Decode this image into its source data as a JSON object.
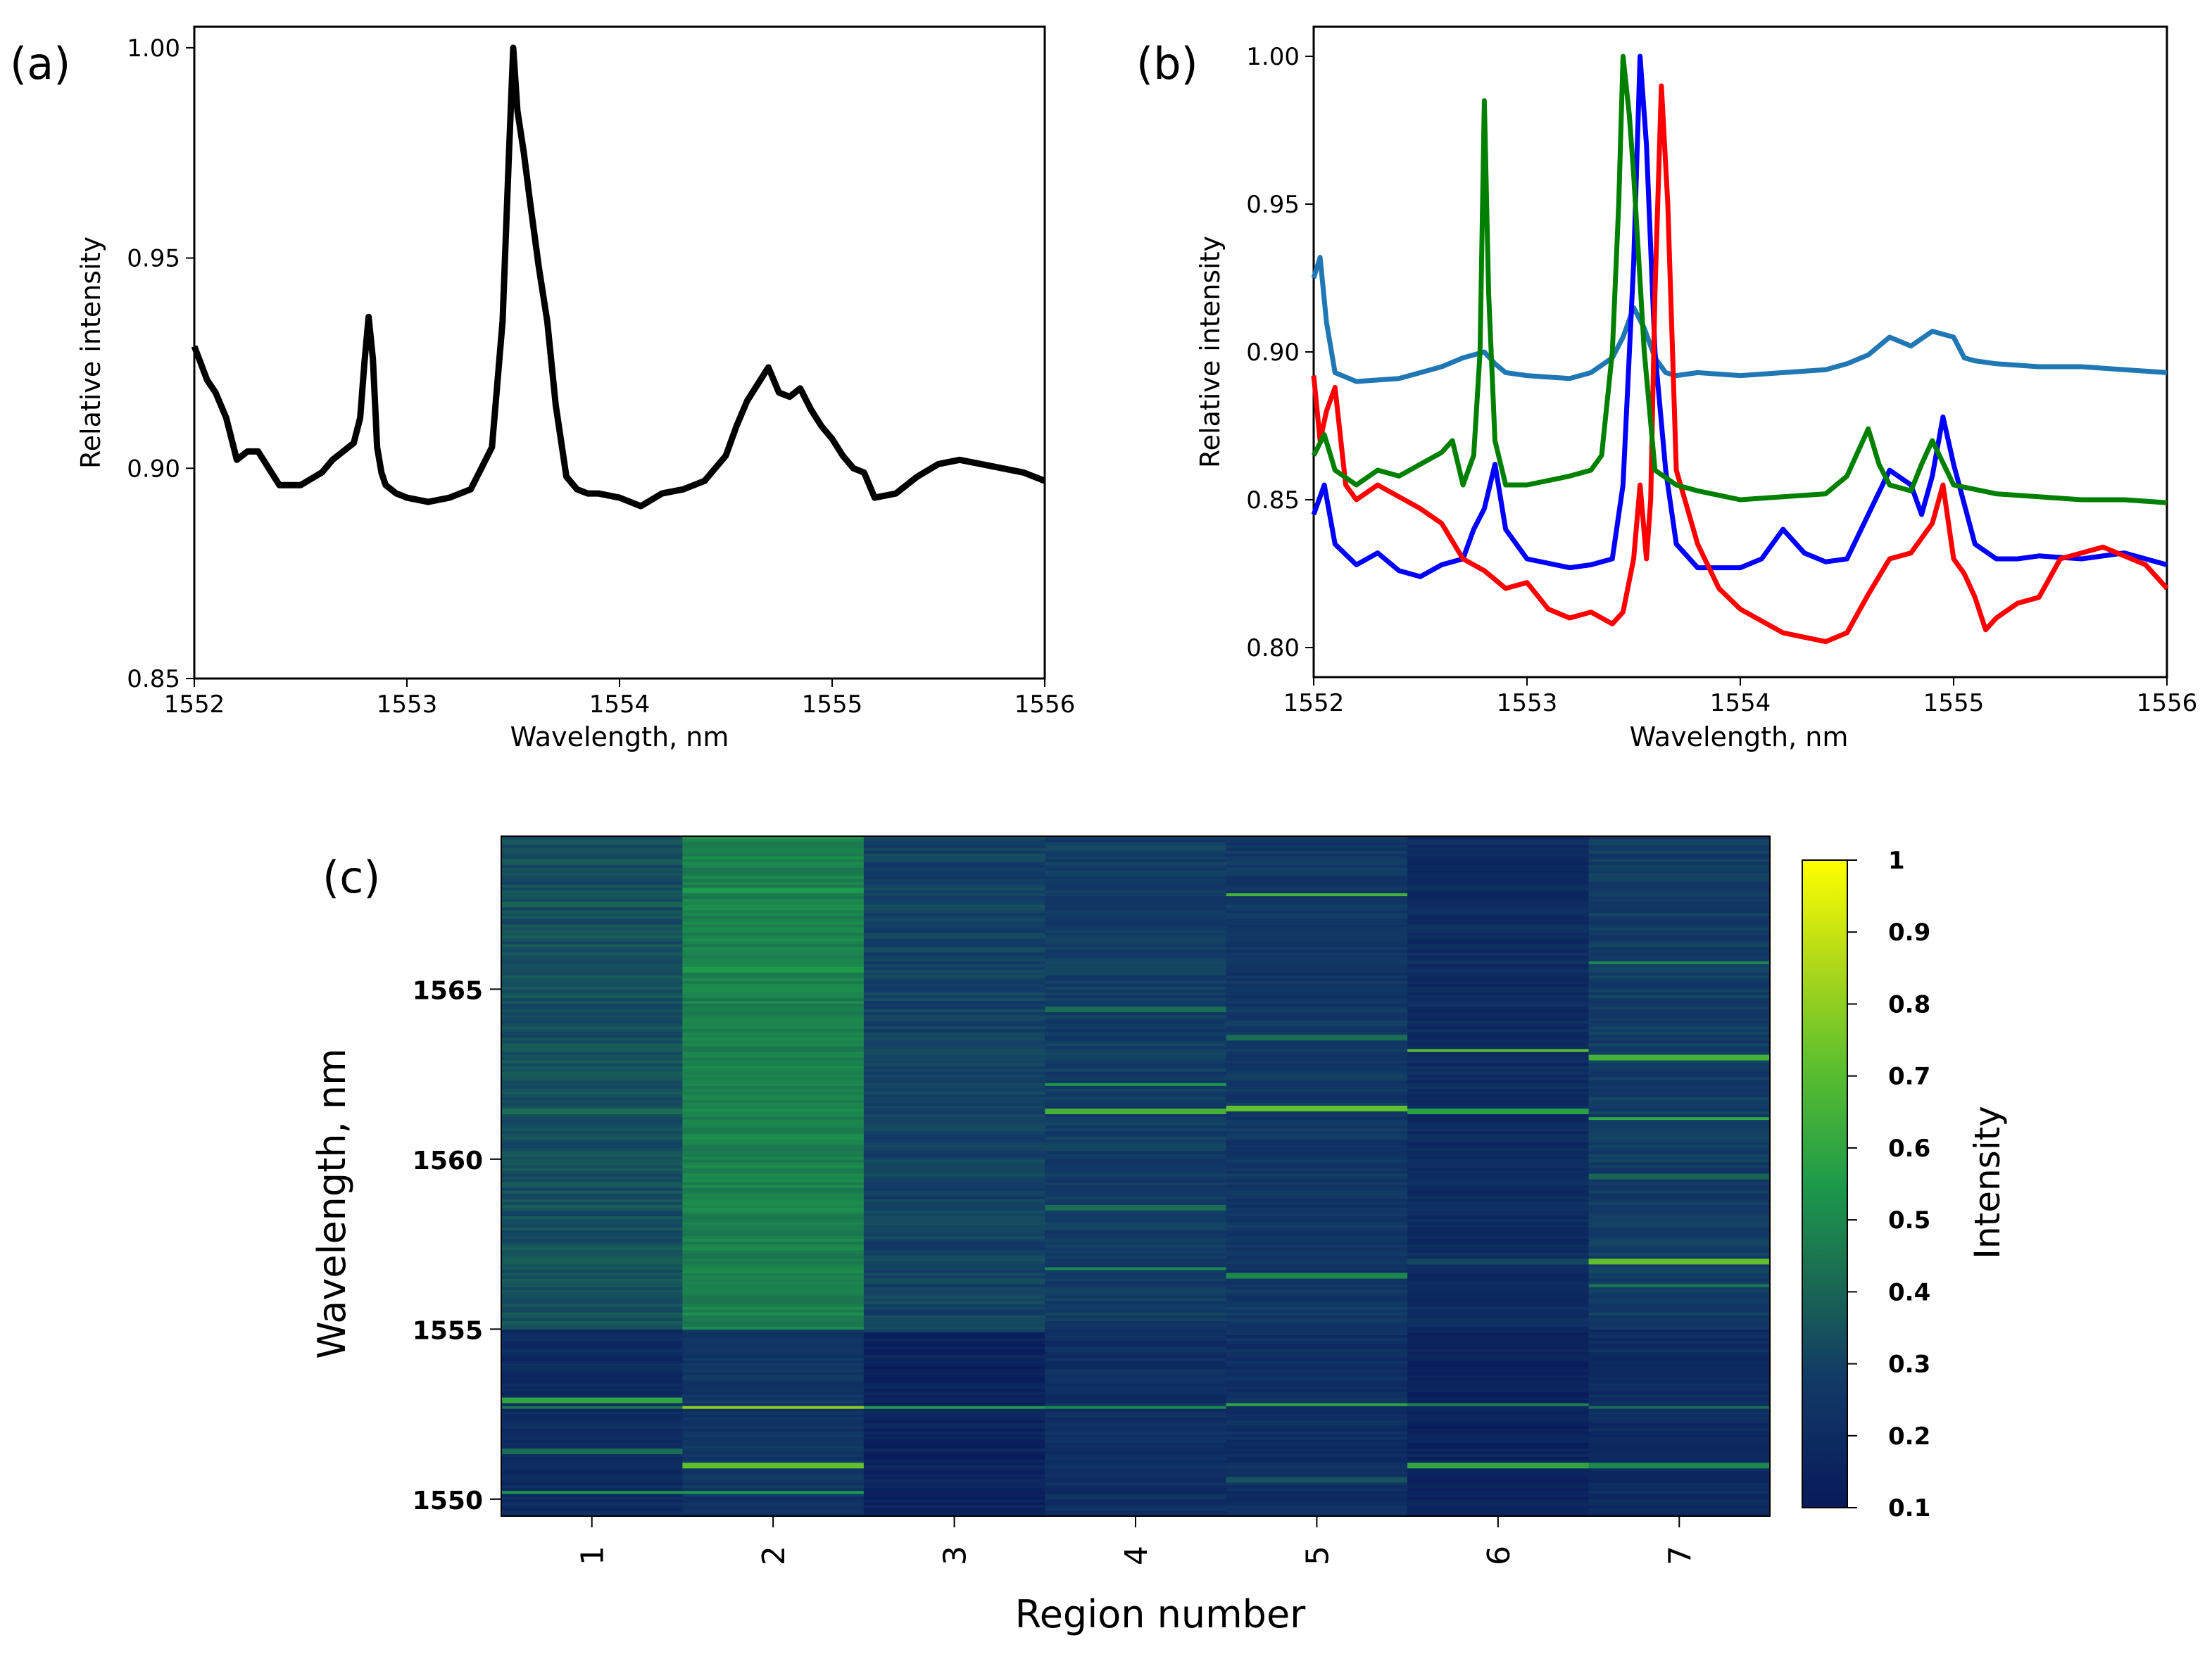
{
  "panels": {
    "a": {
      "label": "(a)"
    },
    "b": {
      "label": "(b)"
    },
    "c": {
      "label": "(c)"
    }
  },
  "chart_data": [
    {
      "id": "a",
      "type": "line",
      "title": "",
      "xlabel": "Wavelength, nm",
      "ylabel": "Relative intensity",
      "xlim": [
        1552,
        1556
      ],
      "ylim": [
        0.85,
        1.005
      ],
      "xticks": [
        "1552",
        "1553",
        "1554",
        "1555",
        "1556"
      ],
      "yticks": [
        "0.85",
        "0.90",
        "0.95",
        "1.00"
      ],
      "grid": false,
      "series": [
        {
          "color": "#000000",
          "x": [
            1552.0,
            1552.03,
            1552.06,
            1552.1,
            1552.15,
            1552.2,
            1552.25,
            1552.3,
            1552.4,
            1552.5,
            1552.6,
            1552.65,
            1552.7,
            1552.75,
            1552.78,
            1552.8,
            1552.82,
            1552.84,
            1552.86,
            1552.88,
            1552.9,
            1552.95,
            1553.0,
            1553.1,
            1553.2,
            1553.3,
            1553.35,
            1553.4,
            1553.45,
            1553.48,
            1553.5,
            1553.52,
            1553.55,
            1553.58,
            1553.62,
            1553.66,
            1553.7,
            1553.75,
            1553.8,
            1553.85,
            1553.9,
            1554.0,
            1554.1,
            1554.2,
            1554.3,
            1554.4,
            1554.5,
            1554.55,
            1554.6,
            1554.65,
            1554.7,
            1554.75,
            1554.8,
            1554.85,
            1554.9,
            1554.95,
            1555.0,
            1555.05,
            1555.1,
            1555.15,
            1555.2,
            1555.3,
            1555.4,
            1555.5,
            1555.6,
            1555.7,
            1555.8,
            1555.9,
            1556.0
          ],
          "y": [
            0.929,
            0.925,
            0.921,
            0.918,
            0.912,
            0.902,
            0.904,
            0.904,
            0.896,
            0.896,
            0.899,
            0.902,
            0.904,
            0.906,
            0.912,
            0.925,
            0.936,
            0.926,
            0.905,
            0.899,
            0.896,
            0.894,
            0.893,
            0.892,
            0.893,
            0.895,
            0.9,
            0.905,
            0.935,
            0.975,
            1.0,
            0.985,
            0.975,
            0.963,
            0.948,
            0.935,
            0.915,
            0.898,
            0.895,
            0.894,
            0.894,
            0.893,
            0.891,
            0.894,
            0.895,
            0.897,
            0.903,
            0.91,
            0.916,
            0.92,
            0.924,
            0.918,
            0.917,
            0.919,
            0.914,
            0.91,
            0.907,
            0.903,
            0.9,
            0.899,
            0.893,
            0.894,
            0.898,
            0.901,
            0.902,
            0.901,
            0.9,
            0.899,
            0.897
          ]
        }
      ]
    },
    {
      "id": "b",
      "type": "line",
      "title": "",
      "xlabel": "Wavelength, nm",
      "ylabel": "Relative intensity",
      "xlim": [
        1552,
        1556
      ],
      "ylim": [
        0.79,
        1.01
      ],
      "xticks": [
        "1552",
        "1553",
        "1554",
        "1555",
        "1556"
      ],
      "yticks": [
        "0.80",
        "0.85",
        "0.90",
        "0.95",
        "1.00"
      ],
      "grid": false,
      "series": [
        {
          "color": "#1f77b4",
          "x": [
            1552.0,
            1552.03,
            1552.06,
            1552.1,
            1552.2,
            1552.4,
            1552.6,
            1552.7,
            1552.8,
            1552.85,
            1552.9,
            1553.0,
            1553.2,
            1553.3,
            1553.4,
            1553.45,
            1553.5,
            1553.55,
            1553.6,
            1553.65,
            1553.7,
            1553.8,
            1554.0,
            1554.2,
            1554.4,
            1554.5,
            1554.6,
            1554.7,
            1554.8,
            1554.9,
            1555.0,
            1555.05,
            1555.1,
            1555.2,
            1555.4,
            1555.6,
            1555.8,
            1556.0
          ],
          "y": [
            0.925,
            0.932,
            0.91,
            0.893,
            0.89,
            0.891,
            0.895,
            0.898,
            0.9,
            0.896,
            0.893,
            0.892,
            0.891,
            0.893,
            0.898,
            0.905,
            0.915,
            0.908,
            0.898,
            0.893,
            0.892,
            0.893,
            0.892,
            0.893,
            0.894,
            0.896,
            0.899,
            0.905,
            0.902,
            0.907,
            0.905,
            0.898,
            0.897,
            0.896,
            0.895,
            0.895,
            0.894,
            0.893
          ]
        },
        {
          "color": "#0000ff",
          "x": [
            1552.0,
            1552.05,
            1552.1,
            1552.2,
            1552.3,
            1552.4,
            1552.5,
            1552.6,
            1552.7,
            1552.75,
            1552.8,
            1552.85,
            1552.9,
            1553.0,
            1553.2,
            1553.3,
            1553.4,
            1553.45,
            1553.5,
            1553.53,
            1553.56,
            1553.6,
            1553.65,
            1553.7,
            1553.8,
            1554.0,
            1554.1,
            1554.2,
            1554.3,
            1554.4,
            1554.5,
            1554.6,
            1554.7,
            1554.8,
            1554.85,
            1554.9,
            1554.95,
            1555.0,
            1555.1,
            1555.2,
            1555.3,
            1555.4,
            1555.6,
            1555.8,
            1556.0
          ],
          "y": [
            0.845,
            0.855,
            0.835,
            0.828,
            0.832,
            0.826,
            0.824,
            0.828,
            0.83,
            0.84,
            0.847,
            0.862,
            0.84,
            0.83,
            0.827,
            0.828,
            0.83,
            0.855,
            0.93,
            1.0,
            0.97,
            0.9,
            0.86,
            0.835,
            0.827,
            0.827,
            0.83,
            0.84,
            0.832,
            0.829,
            0.83,
            0.845,
            0.86,
            0.855,
            0.845,
            0.858,
            0.878,
            0.862,
            0.835,
            0.83,
            0.83,
            0.831,
            0.83,
            0.832,
            0.828
          ]
        },
        {
          "color": "#ff0000",
          "x": [
            1552.0,
            1552.03,
            1552.06,
            1552.1,
            1552.15,
            1552.2,
            1552.3,
            1552.5,
            1552.6,
            1552.7,
            1552.8,
            1552.9,
            1553.0,
            1553.1,
            1553.2,
            1553.3,
            1553.4,
            1553.45,
            1553.5,
            1553.53,
            1553.56,
            1553.58,
            1553.6,
            1553.63,
            1553.66,
            1553.7,
            1553.8,
            1553.9,
            1554.0,
            1554.2,
            1554.4,
            1554.5,
            1554.6,
            1554.7,
            1554.8,
            1554.9,
            1554.95,
            1555.0,
            1555.05,
            1555.1,
            1555.15,
            1555.2,
            1555.3,
            1555.4,
            1555.5,
            1555.6,
            1555.7,
            1555.8,
            1555.9,
            1556.0
          ],
          "y": [
            0.892,
            0.87,
            0.88,
            0.888,
            0.855,
            0.85,
            0.855,
            0.847,
            0.842,
            0.83,
            0.826,
            0.82,
            0.822,
            0.813,
            0.81,
            0.812,
            0.808,
            0.812,
            0.83,
            0.855,
            0.83,
            0.85,
            0.92,
            0.99,
            0.95,
            0.86,
            0.835,
            0.82,
            0.813,
            0.805,
            0.802,
            0.805,
            0.818,
            0.83,
            0.832,
            0.842,
            0.855,
            0.83,
            0.825,
            0.817,
            0.806,
            0.81,
            0.815,
            0.817,
            0.83,
            0.832,
            0.834,
            0.831,
            0.828,
            0.82
          ]
        },
        {
          "color": "#008000",
          "x": [
            1552.0,
            1552.05,
            1552.1,
            1552.2,
            1552.3,
            1552.4,
            1552.5,
            1552.6,
            1552.65,
            1552.7,
            1552.75,
            1552.78,
            1552.8,
            1552.82,
            1552.85,
            1552.9,
            1553.0,
            1553.2,
            1553.3,
            1553.35,
            1553.4,
            1553.43,
            1553.45,
            1553.48,
            1553.5,
            1553.55,
            1553.6,
            1553.7,
            1553.8,
            1554.0,
            1554.2,
            1554.4,
            1554.5,
            1554.55,
            1554.6,
            1554.65,
            1554.7,
            1554.8,
            1554.85,
            1554.9,
            1555.0,
            1555.2,
            1555.4,
            1555.6,
            1555.8,
            1556.0
          ],
          "y": [
            0.865,
            0.872,
            0.86,
            0.855,
            0.86,
            0.858,
            0.862,
            0.866,
            0.87,
            0.855,
            0.865,
            0.9,
            0.985,
            0.92,
            0.87,
            0.855,
            0.855,
            0.858,
            0.86,
            0.865,
            0.9,
            0.95,
            1.0,
            0.98,
            0.96,
            0.9,
            0.86,
            0.855,
            0.853,
            0.85,
            0.851,
            0.852,
            0.858,
            0.866,
            0.874,
            0.862,
            0.855,
            0.853,
            0.862,
            0.87,
            0.855,
            0.852,
            0.851,
            0.85,
            0.85,
            0.849
          ]
        }
      ]
    },
    {
      "id": "c",
      "type": "heatmap",
      "title": "",
      "xlabel": "Region number",
      "ylabel": "Wavelength, nm",
      "colorbar_label": "Intensity",
      "colormap": "dark-blue-to-green-to-yellow",
      "xticks": [
        "1",
        "2",
        "3",
        "4",
        "5",
        "6",
        "7"
      ],
      "yticks": [
        "1550",
        "1555",
        "1560",
        "1565"
      ],
      "ylim": [
        1549.5,
        1569.5
      ],
      "colorbar_ticks": [
        "0.1",
        "0.2",
        "0.3",
        "0.4",
        "0.5",
        "0.6",
        "0.7",
        "0.8",
        "0.9",
        "1"
      ],
      "colorbar_range": [
        0.1,
        1.0
      ],
      "regions": [
        {
          "region": 1,
          "base_upper": 0.34,
          "base_lower": 0.2,
          "bright_lines": [
            [
              1552.9,
              0.6
            ],
            [
              1552.7,
              0.45
            ],
            [
              1551.4,
              0.42
            ],
            [
              1550.2,
              0.55
            ],
            [
              1557.0,
              0.38
            ],
            [
              1561.4,
              0.42
            ],
            [
              1567.5,
              0.4
            ]
          ]
        },
        {
          "region": 2,
          "base_upper": 0.48,
          "base_lower": 0.25,
          "bright_lines": [
            [
              1552.7,
              0.8
            ],
            [
              1551.0,
              0.72
            ],
            [
              1550.2,
              0.55
            ],
            [
              1556.7,
              0.52
            ],
            [
              1565.6,
              0.55
            ],
            [
              1567.9,
              0.55
            ]
          ]
        },
        {
          "region": 3,
          "base_upper": 0.3,
          "base_lower": 0.15,
          "bright_lines": [
            [
              1552.7,
              0.55
            ],
            [
              1555.0,
              0.3
            ],
            [
              1559.0,
              0.3
            ]
          ]
        },
        {
          "region": 4,
          "base_upper": 0.28,
          "base_lower": 0.22,
          "bright_lines": [
            [
              1561.4,
              0.65
            ],
            [
              1562.2,
              0.55
            ],
            [
              1556.8,
              0.5
            ],
            [
              1552.7,
              0.5
            ],
            [
              1558.6,
              0.42
            ],
            [
              1564.4,
              0.42
            ]
          ]
        },
        {
          "region": 5,
          "base_upper": 0.26,
          "base_lower": 0.22,
          "bright_lines": [
            [
              1561.5,
              0.72
            ],
            [
              1567.8,
              0.65
            ],
            [
              1552.8,
              0.6
            ],
            [
              1556.6,
              0.5
            ],
            [
              1563.6,
              0.42
            ],
            [
              1550.6,
              0.35
            ]
          ]
        },
        {
          "region": 6,
          "base_upper": 0.2,
          "base_lower": 0.15,
          "bright_lines": [
            [
              1563.2,
              0.7
            ],
            [
              1561.4,
              0.58
            ],
            [
              1552.8,
              0.48
            ],
            [
              1551.0,
              0.6
            ],
            [
              1557.0,
              0.32
            ]
          ]
        },
        {
          "region": 7,
          "base_upper": 0.28,
          "base_lower": 0.2,
          "bright_lines": [
            [
              1563.0,
              0.65
            ],
            [
              1561.2,
              0.6
            ],
            [
              1557.0,
              0.72
            ],
            [
              1565.8,
              0.5
            ],
            [
              1551.0,
              0.5
            ],
            [
              1556.3,
              0.45
            ],
            [
              1559.5,
              0.4
            ],
            [
              1552.7,
              0.42
            ]
          ]
        }
      ]
    }
  ]
}
